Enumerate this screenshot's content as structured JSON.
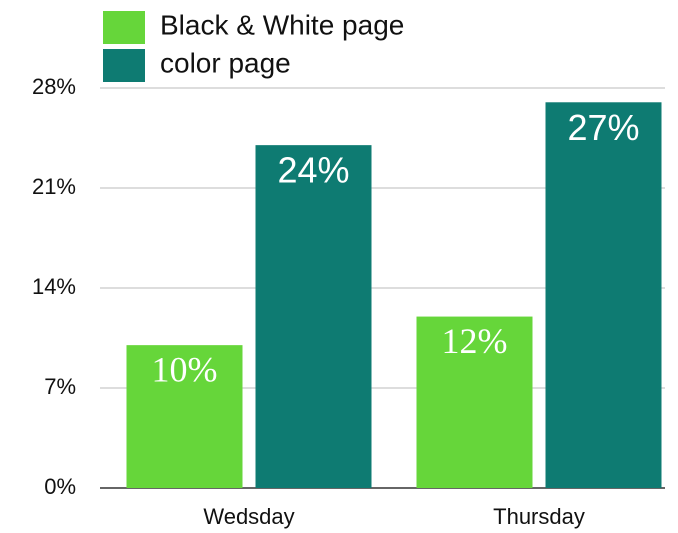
{
  "chart_data": {
    "type": "bar",
    "categories": [
      "Wedsday",
      "Thursday"
    ],
    "series": [
      {
        "name": "Black & White page",
        "color": "#66d63a",
        "values": [
          10,
          12
        ],
        "value_labels": [
          "10%",
          "12%"
        ]
      },
      {
        "name": "color page",
        "color": "#0e7b72",
        "values": [
          24,
          27
        ],
        "value_labels": [
          "24%",
          "27%"
        ]
      }
    ],
    "ylim": [
      0,
      28
    ],
    "yticks": [
      {
        "value": 0,
        "label": "0%"
      },
      {
        "value": 7,
        "label": "7%"
      },
      {
        "value": 14,
        "label": "14%"
      },
      {
        "value": 21,
        "label": "21%"
      },
      {
        "value": 28,
        "label": "28%"
      }
    ],
    "grid": true,
    "legend": "top-left"
  }
}
